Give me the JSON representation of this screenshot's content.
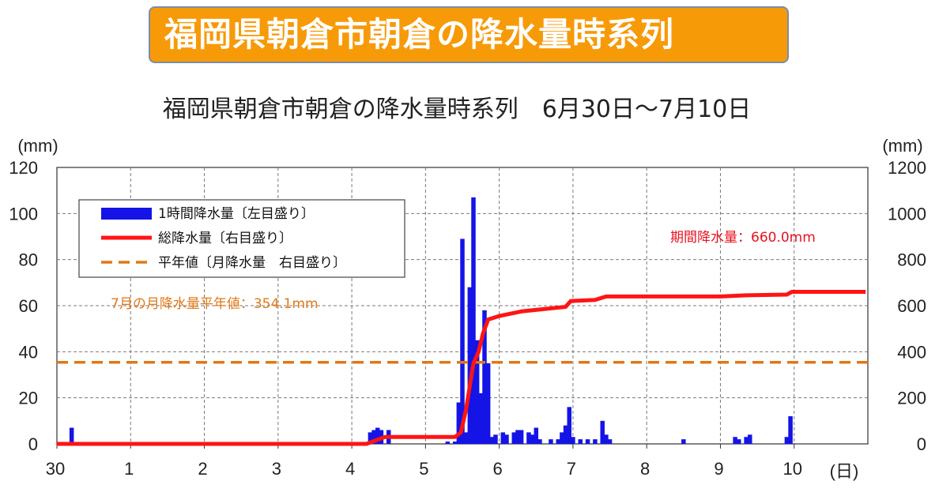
{
  "banner_title": "福岡県朝倉市朝倉の降水量時系列",
  "chart_data": {
    "type": "bar+line",
    "title": "福岡県朝倉市朝倉の降水量時系列　6月30日～7月10日",
    "y_left_unit": "(mm)",
    "y_right_unit": "(mm)",
    "x_unit": "(日)",
    "x_ticks": [
      "30",
      "1",
      "2",
      "3",
      "4",
      "5",
      "6",
      "7",
      "8",
      "9",
      "10"
    ],
    "y_left_ticks": [
      "0",
      "20",
      "40",
      "60",
      "80",
      "100",
      "120"
    ],
    "y_right_ticks": [
      "0",
      "200",
      "400",
      "600",
      "800",
      "1000",
      "1200"
    ],
    "ylim_left": [
      0,
      120
    ],
    "ylim_right": [
      0,
      1200
    ],
    "grid": true,
    "legend": {
      "position": "top-left",
      "entries": [
        "1時間降水量〔左目盛り〕",
        "総降水量〔右目盛り〕",
        "平年値〔月降水量　右目盛り〕"
      ]
    },
    "annotations": {
      "normal_label": "7月の月降水量平年値：354.1mm",
      "total_label": "期間降水量：660.0mm"
    },
    "normal_value": 354.1,
    "colors": {
      "bars": "#1414e6",
      "total": "#ff1414",
      "normal": "#e07818",
      "total_label": "#e8101e",
      "normal_label": "#e07818"
    },
    "hourly_bars": [
      {
        "x": 0.2,
        "v": 7
      },
      {
        "x": 4.25,
        "v": 5
      },
      {
        "x": 4.3,
        "v": 6
      },
      {
        "x": 4.35,
        "v": 7
      },
      {
        "x": 4.4,
        "v": 6
      },
      {
        "x": 4.5,
        "v": 6
      },
      {
        "x": 5.3,
        "v": 1
      },
      {
        "x": 5.4,
        "v": 1
      },
      {
        "x": 5.45,
        "v": 18
      },
      {
        "x": 5.5,
        "v": 89
      },
      {
        "x": 5.55,
        "v": 5
      },
      {
        "x": 5.6,
        "v": 68
      },
      {
        "x": 5.65,
        "v": 107
      },
      {
        "x": 5.7,
        "v": 45
      },
      {
        "x": 5.75,
        "v": 22
      },
      {
        "x": 5.8,
        "v": 58
      },
      {
        "x": 5.85,
        "v": 35
      },
      {
        "x": 5.9,
        "v": 3
      },
      {
        "x": 5.95,
        "v": 4
      },
      {
        "x": 6.05,
        "v": 5
      },
      {
        "x": 6.1,
        "v": 4
      },
      {
        "x": 6.2,
        "v": 5
      },
      {
        "x": 6.25,
        "v": 6
      },
      {
        "x": 6.3,
        "v": 6
      },
      {
        "x": 6.4,
        "v": 5
      },
      {
        "x": 6.45,
        "v": 4
      },
      {
        "x": 6.5,
        "v": 7
      },
      {
        "x": 6.55,
        "v": 2
      },
      {
        "x": 6.7,
        "v": 2
      },
      {
        "x": 6.8,
        "v": 2
      },
      {
        "x": 6.85,
        "v": 5
      },
      {
        "x": 6.9,
        "v": 8
      },
      {
        "x": 6.95,
        "v": 16
      },
      {
        "x": 7.0,
        "v": 3
      },
      {
        "x": 7.1,
        "v": 2
      },
      {
        "x": 7.2,
        "v": 2
      },
      {
        "x": 7.3,
        "v": 2
      },
      {
        "x": 7.4,
        "v": 10
      },
      {
        "x": 7.45,
        "v": 4
      },
      {
        "x": 7.5,
        "v": 2
      },
      {
        "x": 8.5,
        "v": 2
      },
      {
        "x": 9.2,
        "v": 3
      },
      {
        "x": 9.25,
        "v": 2
      },
      {
        "x": 9.35,
        "v": 3
      },
      {
        "x": 9.4,
        "v": 4
      },
      {
        "x": 9.9,
        "v": 3
      },
      {
        "x": 9.95,
        "v": 12
      }
    ],
    "cumulative_line": [
      [
        0,
        0
      ],
      [
        4.2,
        0
      ],
      [
        4.45,
        30
      ],
      [
        5.4,
        30
      ],
      [
        5.48,
        50
      ],
      [
        5.55,
        150
      ],
      [
        5.6,
        250
      ],
      [
        5.65,
        350
      ],
      [
        5.72,
        400
      ],
      [
        5.78,
        480
      ],
      [
        5.85,
        540
      ],
      [
        6.0,
        555
      ],
      [
        6.3,
        575
      ],
      [
        6.6,
        585
      ],
      [
        6.9,
        595
      ],
      [
        6.97,
        620
      ],
      [
        7.3,
        625
      ],
      [
        7.45,
        640
      ],
      [
        8.0,
        640
      ],
      [
        9.0,
        640
      ],
      [
        9.35,
        645
      ],
      [
        9.9,
        648
      ],
      [
        9.97,
        660
      ],
      [
        10.97,
        660
      ]
    ]
  }
}
